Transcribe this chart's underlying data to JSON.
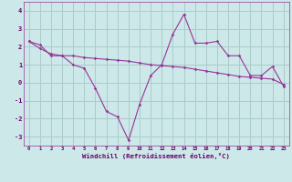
{
  "xlabel": "Windchill (Refroidissement éolien,°C)",
  "bg_color": "#cce8e8",
  "grid_color": "#aacccc",
  "line_color": "#993399",
  "x_wavy": [
    0,
    1,
    2,
    3,
    4,
    5,
    6,
    7,
    8,
    9,
    10,
    11,
    12,
    13,
    14,
    15,
    16,
    17,
    18,
    19,
    20,
    21,
    22,
    23
  ],
  "y_wavy": [
    2.3,
    2.1,
    1.5,
    1.5,
    1.0,
    0.8,
    -0.3,
    -1.6,
    -1.9,
    -3.2,
    -1.2,
    0.4,
    1.0,
    2.7,
    3.8,
    2.2,
    2.2,
    2.3,
    1.5,
    1.5,
    0.4,
    0.4,
    0.9,
    -0.2
  ],
  "x_linear": [
    0,
    1,
    2,
    3,
    4,
    5,
    6,
    7,
    8,
    9,
    10,
    11,
    12,
    13,
    14,
    15,
    16,
    17,
    18,
    19,
    20,
    21,
    22,
    23
  ],
  "y_linear": [
    2.3,
    1.9,
    1.6,
    1.5,
    1.5,
    1.4,
    1.35,
    1.3,
    1.25,
    1.2,
    1.1,
    1.0,
    0.95,
    0.9,
    0.85,
    0.75,
    0.65,
    0.55,
    0.45,
    0.35,
    0.3,
    0.25,
    0.2,
    -0.1
  ],
  "ylim": [
    -3.5,
    4.5
  ],
  "xlim": [
    -0.5,
    23.5
  ],
  "yticks": [
    -3,
    -2,
    -1,
    0,
    1,
    2,
    3,
    4
  ],
  "xticks": [
    0,
    1,
    2,
    3,
    4,
    5,
    6,
    7,
    8,
    9,
    10,
    11,
    12,
    13,
    14,
    15,
    16,
    17,
    18,
    19,
    20,
    21,
    22,
    23
  ]
}
